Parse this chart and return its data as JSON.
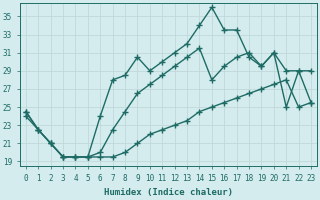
{
  "xlabel": "Humidex (Indice chaleur)",
  "ylabel": "",
  "bg_color": "#d4ecee",
  "line_color": "#1e6b65",
  "grid_color": "#c0d8da",
  "xlim": [
    -0.5,
    23.5
  ],
  "ylim": [
    18.5,
    36.5
  ],
  "xticks": [
    0,
    1,
    2,
    3,
    4,
    5,
    6,
    7,
    8,
    9,
    10,
    11,
    12,
    13,
    14,
    15,
    16,
    17,
    18,
    19,
    20,
    21,
    22,
    23
  ],
  "yticks": [
    19,
    21,
    23,
    25,
    27,
    29,
    31,
    33,
    35
  ],
  "series1_x": [
    0,
    1,
    2,
    3,
    4,
    5,
    6,
    7,
    8,
    9,
    10,
    11,
    12,
    13,
    14,
    15,
    16,
    17,
    18,
    19,
    20,
    21,
    22,
    23
  ],
  "series1_y": [
    24.5,
    22.5,
    21.0,
    19.5,
    19.5,
    19.5,
    24.0,
    28.0,
    28.5,
    30.5,
    29.0,
    30.0,
    31.0,
    32.0,
    34.0,
    36.0,
    33.5,
    33.5,
    30.5,
    29.5,
    31.0,
    29.0,
    29.0,
    29.0
  ],
  "series2_x": [
    0,
    1,
    2,
    3,
    4,
    5,
    6,
    7,
    8,
    9,
    10,
    11,
    12,
    13,
    14,
    15,
    16,
    17,
    18,
    19,
    20,
    21,
    22,
    23
  ],
  "series2_y": [
    24.5,
    22.5,
    21.0,
    19.5,
    19.5,
    19.5,
    20.0,
    22.5,
    24.5,
    26.5,
    27.5,
    28.5,
    29.5,
    30.5,
    31.5,
    28.0,
    29.5,
    30.5,
    31.0,
    29.5,
    31.0,
    25.0,
    29.0,
    25.5
  ],
  "series3_x": [
    0,
    1,
    2,
    3,
    4,
    5,
    6,
    7,
    8,
    9,
    10,
    11,
    12,
    13,
    14,
    15,
    16,
    17,
    18,
    19,
    20,
    21,
    22,
    23
  ],
  "series3_y": [
    24.0,
    22.5,
    21.0,
    19.5,
    19.5,
    19.5,
    19.5,
    19.5,
    20.0,
    21.0,
    22.0,
    22.5,
    23.0,
    23.5,
    24.5,
    25.0,
    25.5,
    26.0,
    26.5,
    27.0,
    27.5,
    28.0,
    25.0,
    25.5
  ],
  "marker": "+",
  "markersize": 4.0,
  "linewidth": 1.0
}
